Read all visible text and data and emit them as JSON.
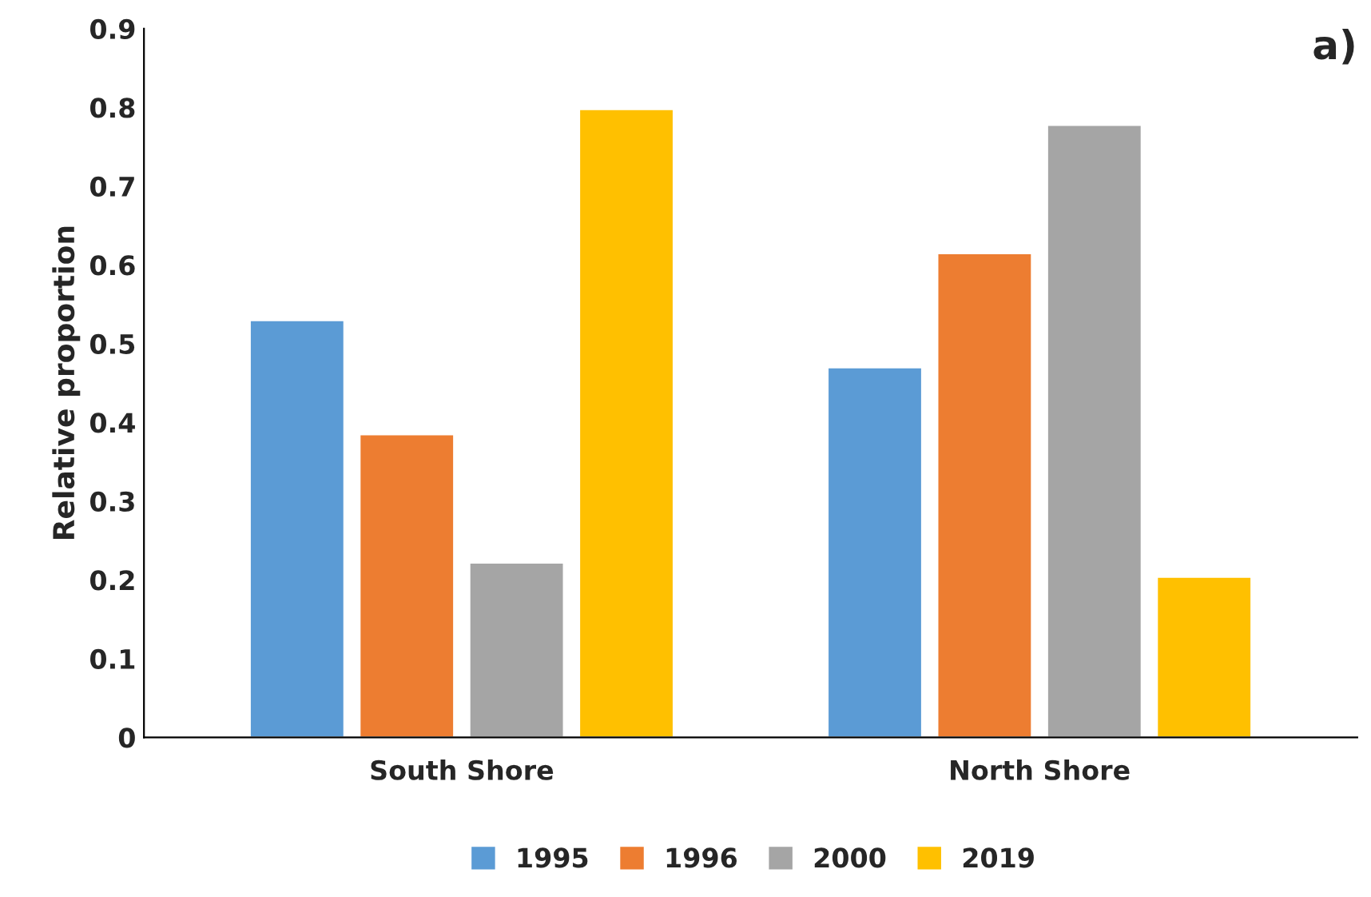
{
  "chart_data": {
    "type": "bar",
    "ylabel": "Relative proportion",
    "annotations": [
      "a)"
    ],
    "categories": [
      "South Shore",
      "North Shore"
    ],
    "series": [
      {
        "name": "1995",
        "color": "#5b9bd5",
        "values": [
          0.53,
          0.47
        ]
      },
      {
        "name": "1996",
        "color": "#ed7d31",
        "values": [
          0.385,
          0.615
        ]
      },
      {
        "name": "2000",
        "color": "#a5a5a5",
        "values": [
          0.222,
          0.778
        ]
      },
      {
        "name": "2019",
        "color": "#ffc000",
        "values": [
          0.798,
          0.204
        ]
      }
    ],
    "ylim": [
      0,
      0.9
    ],
    "yticks": [
      0,
      0.1,
      0.2,
      0.3,
      0.4,
      0.5,
      0.6,
      0.7,
      0.8,
      0.9
    ],
    "grid": false,
    "legend": "bottom"
  }
}
